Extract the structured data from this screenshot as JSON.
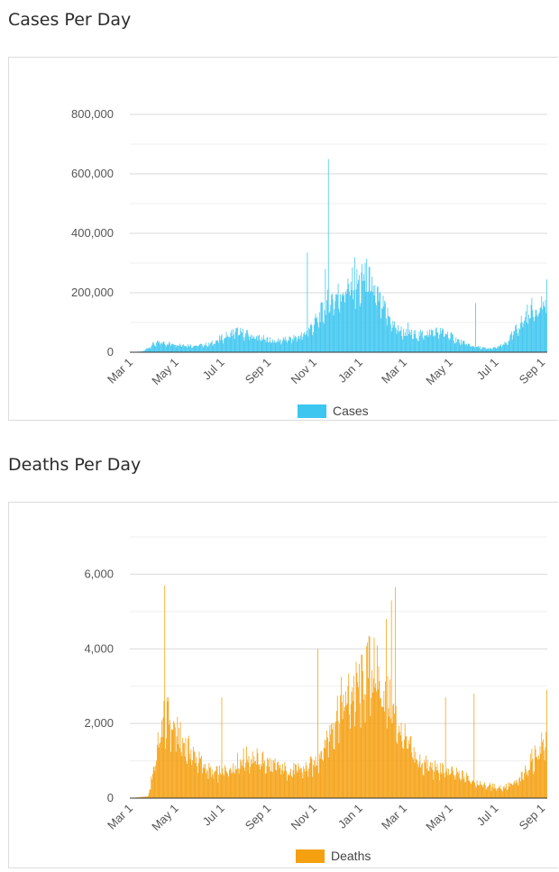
{
  "headings": {
    "cases": "Cases Per Day",
    "deaths": "Deaths Per Day"
  },
  "chart_data": [
    {
      "type": "bar",
      "title": "Cases Per Day",
      "legend": "Cases",
      "legend_position": "bottom",
      "color": "#3cc6f0",
      "grid": true,
      "ylim": [
        0,
        800000
      ],
      "y_ticks": [
        0,
        200000,
        400000,
        600000,
        800000
      ],
      "y_tick_labels": [
        "0",
        "200,000",
        "400,000",
        "600,000",
        "800,000"
      ],
      "x_ticks": [
        "Mar 1",
        "May 1",
        "Jul 1",
        "Sep 1",
        "Nov 1",
        "Jan 1",
        "Mar 1",
        "May 1",
        "Jul 1",
        "Sep 1"
      ],
      "x_start": "2020-03-01",
      "x_end": "2021-09-07",
      "series_profile": [
        [
          "2020-03-01",
          0
        ],
        [
          "2020-03-18",
          3000
        ],
        [
          "2020-04-01",
          28000
        ],
        [
          "2020-04-10",
          32000
        ],
        [
          "2020-05-01",
          28000
        ],
        [
          "2020-05-25",
          22000
        ],
        [
          "2020-06-15",
          27000
        ],
        [
          "2020-07-01",
          48000
        ],
        [
          "2020-07-20",
          70000
        ],
        [
          "2020-08-01",
          62000
        ],
        [
          "2020-08-20",
          48000
        ],
        [
          "2020-09-10",
          38000
        ],
        [
          "2020-10-01",
          45000
        ],
        [
          "2020-10-20",
          60000
        ],
        [
          "2020-11-05",
          110000
        ],
        [
          "2020-11-20",
          170000
        ],
        [
          "2020-12-01",
          190000
        ],
        [
          "2020-12-15",
          220000
        ],
        [
          "2021-01-01",
          230000
        ],
        [
          "2021-01-10",
          250000
        ],
        [
          "2021-01-25",
          180000
        ],
        [
          "2021-02-15",
          90000
        ],
        [
          "2021-03-01",
          65000
        ],
        [
          "2021-03-20",
          58000
        ],
        [
          "2021-04-10",
          70000
        ],
        [
          "2021-04-25",
          65000
        ],
        [
          "2021-05-15",
          35000
        ],
        [
          "2021-06-01",
          20000
        ],
        [
          "2021-06-20",
          12000
        ],
        [
          "2021-07-01",
          15000
        ],
        [
          "2021-07-15",
          30000
        ],
        [
          "2021-08-01",
          90000
        ],
        [
          "2021-08-15",
          140000
        ],
        [
          "2021-09-01",
          160000
        ],
        [
          "2021-09-07",
          170000
        ]
      ],
      "spikes": [
        [
          "2020-10-23",
          335000
        ],
        [
          "2020-11-20",
          650000
        ],
        [
          "2020-11-16",
          280000
        ],
        [
          "2020-12-25",
          320000
        ],
        [
          "2021-01-08",
          300000
        ],
        [
          "2021-03-06",
          100000
        ],
        [
          "2021-06-04",
          165000
        ],
        [
          "2021-09-07",
          245000
        ]
      ]
    },
    {
      "type": "bar",
      "title": "Deaths Per Day",
      "legend": "Deaths",
      "legend_position": "bottom",
      "color": "#f5a010",
      "grid": true,
      "ylim": [
        0,
        7000
      ],
      "y_ticks": [
        0,
        2000,
        4000,
        6000
      ],
      "y_tick_labels": [
        "0",
        "2,000",
        "4,000",
        "6,000"
      ],
      "x_ticks": [
        "Mar 1",
        "May 1",
        "Jul 1",
        "Sep 1",
        "Nov 1",
        "Jan 1",
        "Mar 1",
        "May 1",
        "Jul 1",
        "Sep 1"
      ],
      "x_start": "2020-03-01",
      "x_end": "2021-09-07",
      "series_profile": [
        [
          "2020-03-01",
          0
        ],
        [
          "2020-03-25",
          50
        ],
        [
          "2020-04-05",
          1200
        ],
        [
          "2020-04-15",
          2200
        ],
        [
          "2020-04-25",
          2000
        ],
        [
          "2020-05-10",
          1500
        ],
        [
          "2020-06-01",
          1000
        ],
        [
          "2020-06-20",
          650
        ],
        [
          "2020-07-10",
          800
        ],
        [
          "2020-08-01",
          1100
        ],
        [
          "2020-08-20",
          1050
        ],
        [
          "2020-09-10",
          850
        ],
        [
          "2020-10-01",
          750
        ],
        [
          "2020-10-20",
          800
        ],
        [
          "2020-11-05",
          1000
        ],
        [
          "2020-11-20",
          1700
        ],
        [
          "2020-12-05",
          2500
        ],
        [
          "2020-12-20",
          2800
        ],
        [
          "2021-01-05",
          3100
        ],
        [
          "2021-01-15",
          3500
        ],
        [
          "2021-01-25",
          3200
        ],
        [
          "2021-02-10",
          2500
        ],
        [
          "2021-03-01",
          1600
        ],
        [
          "2021-03-20",
          1000
        ],
        [
          "2021-04-10",
          800
        ],
        [
          "2021-05-01",
          700
        ],
        [
          "2021-05-25",
          550
        ],
        [
          "2021-06-15",
          350
        ],
        [
          "2021-07-10",
          280
        ],
        [
          "2021-08-01",
          450
        ],
        [
          "2021-08-20",
          1100
        ],
        [
          "2021-09-07",
          1600
        ]
      ],
      "spikes": [
        [
          "2020-04-16",
          5700
        ],
        [
          "2020-04-21",
          2700
        ],
        [
          "2020-07-01",
          2700
        ],
        [
          "2020-11-06",
          4000
        ],
        [
          "2021-01-13",
          4350
        ],
        [
          "2021-01-20",
          4300
        ],
        [
          "2021-02-12",
          5300
        ],
        [
          "2021-02-17",
          5650
        ],
        [
          "2021-02-05",
          4800
        ],
        [
          "2021-04-25",
          2700
        ],
        [
          "2021-06-02",
          2800
        ],
        [
          "2021-09-07",
          2900
        ]
      ]
    }
  ]
}
